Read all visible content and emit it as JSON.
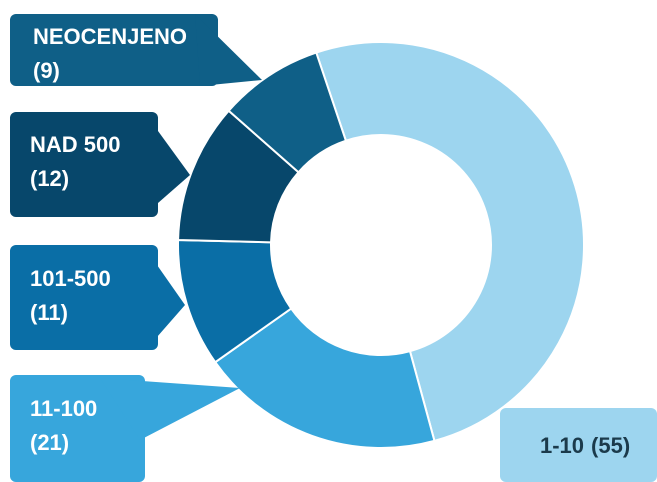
{
  "chart_data": {
    "type": "pie",
    "categories": [
      "1-10",
      "11-100",
      "101-500",
      "NAD 500",
      "NEOCENJENO"
    ],
    "values": [
      55,
      21,
      11,
      12,
      9
    ],
    "value_labels": [
      "(55)",
      "(21)",
      "(11)",
      "(12)",
      "(9)"
    ],
    "colors": [
      "#9dd5ef",
      "#37a6dc",
      "#0a6ea6",
      "#07476b",
      "#0f5f87"
    ]
  }
}
